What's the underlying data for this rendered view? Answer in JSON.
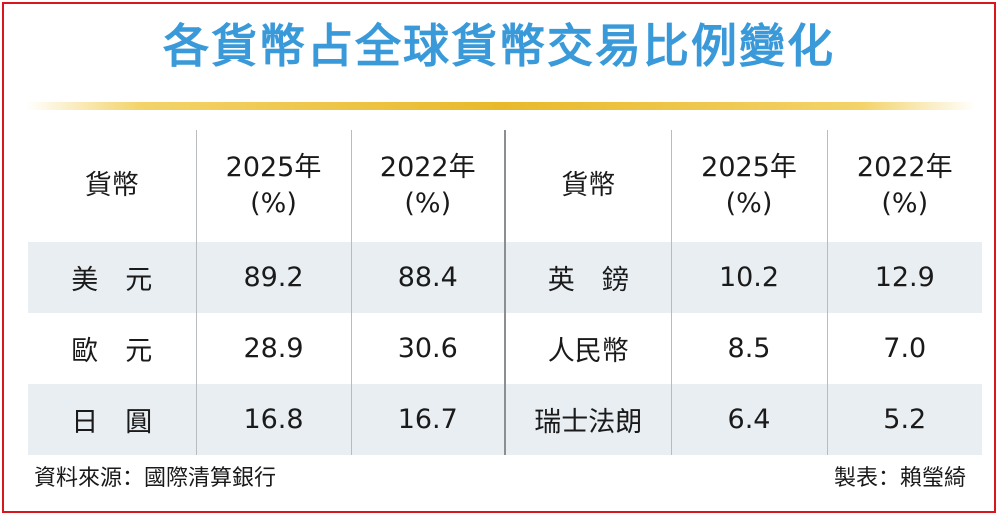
{
  "title": "各貨幣占全球貨幣交易比例變化",
  "chart_data": {
    "type": "table",
    "columns": [
      "貨幣",
      "2025年 (%)",
      "2022年 (%)",
      "貨幣",
      "2025年 (%)",
      "2022年 (%)"
    ],
    "header": {
      "currency": "貨幣",
      "y2025_line1": "2025年",
      "y2025_line2": "(%)",
      "y2022_line1": "2022年",
      "y2022_line2": "(%)"
    },
    "rows": [
      {
        "left": {
          "currency": "美　元",
          "y2025": "89.2",
          "y2022": "88.4"
        },
        "right": {
          "currency": "英　鎊",
          "y2025": "10.2",
          "y2022": "12.9"
        }
      },
      {
        "left": {
          "currency": "歐　元",
          "y2025": "28.9",
          "y2022": "30.6"
        },
        "right": {
          "currency": "人民幣",
          "y2025": "8.5",
          "y2022": "7.0"
        }
      },
      {
        "left": {
          "currency": "日　圓",
          "y2025": "16.8",
          "y2022": "16.7"
        },
        "right": {
          "currency": "瑞士法朗",
          "y2025": "6.4",
          "y2022": "5.2"
        }
      }
    ]
  },
  "footer": {
    "source": "資料來源：國際清算銀行",
    "credit": "製表：賴瑩綺"
  },
  "colors": {
    "title": "#3a9ad9",
    "border": "#d9161b",
    "row_shade": "#e9eef2",
    "title_bar": "#e8b92a"
  }
}
